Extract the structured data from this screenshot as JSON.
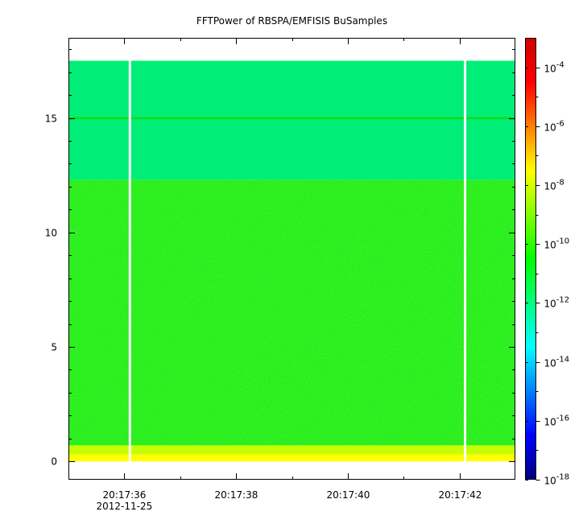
{
  "chart_data": {
    "type": "heatmap",
    "title": "FFTPower of RBSPA/EMFISIS  BuSamples",
    "xlabel": "",
    "ylabel": "",
    "x_axis": {
      "type": "time",
      "range": [
        "2012-11-25T20:17:35.0",
        "2012-11-25T20:17:43.0"
      ],
      "major_ticks": [
        {
          "value": "2012-11-25T20:17:36",
          "label": "20:17:36"
        },
        {
          "value": "2012-11-25T20:17:38",
          "label": "20:17:38"
        },
        {
          "value": "2012-11-25T20:17:40",
          "label": "20:17:40"
        },
        {
          "value": "2012-11-25T20:17:42",
          "label": "20:17:42"
        }
      ],
      "minor_ticks": [
        "2012-11-25T20:17:37",
        "2012-11-25T20:17:39",
        "2012-11-25T20:17:41",
        "2012-11-25T20:17:43"
      ],
      "date_label": "2012-11-25"
    },
    "y_axis": {
      "range": [
        -0.8,
        18.5
      ],
      "major_ticks": [
        {
          "value": 0,
          "label": "0"
        },
        {
          "value": 5,
          "label": "5"
        },
        {
          "value": 10,
          "label": "10"
        },
        {
          "value": 15,
          "label": "15"
        }
      ],
      "minor_ticks": [
        1,
        2,
        3,
        4,
        6,
        7,
        8,
        9,
        11,
        12,
        13,
        14,
        16,
        17,
        18
      ]
    },
    "colorbar": {
      "scale": "log",
      "range": [
        1e-18,
        0.001
      ],
      "ticks": [
        {
          "value": 1e-18,
          "base": "10",
          "exp": "-18"
        },
        {
          "value": 1e-16,
          "base": "10",
          "exp": "-16"
        },
        {
          "value": 1e-14,
          "base": "10",
          "exp": "-14"
        },
        {
          "value": 1e-12,
          "base": "10",
          "exp": "-12"
        },
        {
          "value": 1e-10,
          "base": "10",
          "exp": "-10"
        },
        {
          "value": 1e-08,
          "base": "10",
          "exp": "-8"
        },
        {
          "value": 1e-06,
          "base": "10",
          "exp": "-6"
        },
        {
          "value": 0.0001,
          "base": "10",
          "exp": "-4"
        }
      ],
      "colors": [
        "#00007f",
        "#0000ff",
        "#0080ff",
        "#00ffff",
        "#00ff80",
        "#00ff00",
        "#80ff00",
        "#ffff00",
        "#ff8000",
        "#ff0000",
        "#d00000"
      ]
    },
    "data_range": {
      "time_start": "2012-11-25T20:17:35.0",
      "time_end": "2012-11-25T20:17:43.0",
      "freq_min": 0,
      "freq_max": 17.5
    },
    "bands": [
      {
        "freq_range": [
          0,
          0.3
        ],
        "log10_power": -8.8,
        "color": "#ffff00"
      },
      {
        "freq_range": [
          0.3,
          0.7
        ],
        "log10_power": -9.3,
        "color": "#c8ff00"
      },
      {
        "freq_range": [
          0.7,
          12.3
        ],
        "log10_power": -10.2,
        "color": "#22ee22"
      },
      {
        "freq_range": [
          12.3,
          17.5
        ],
        "log10_power": -11.5,
        "color": "#00ee77"
      }
    ],
    "line_feature": {
      "freq": 15,
      "log10_power": -10.5,
      "color": "#11dd11"
    },
    "data_gaps": [
      {
        "time": "2012-11-25T20:17:36.1"
      },
      {
        "time": "2012-11-25T20:17:42.1"
      }
    ]
  }
}
